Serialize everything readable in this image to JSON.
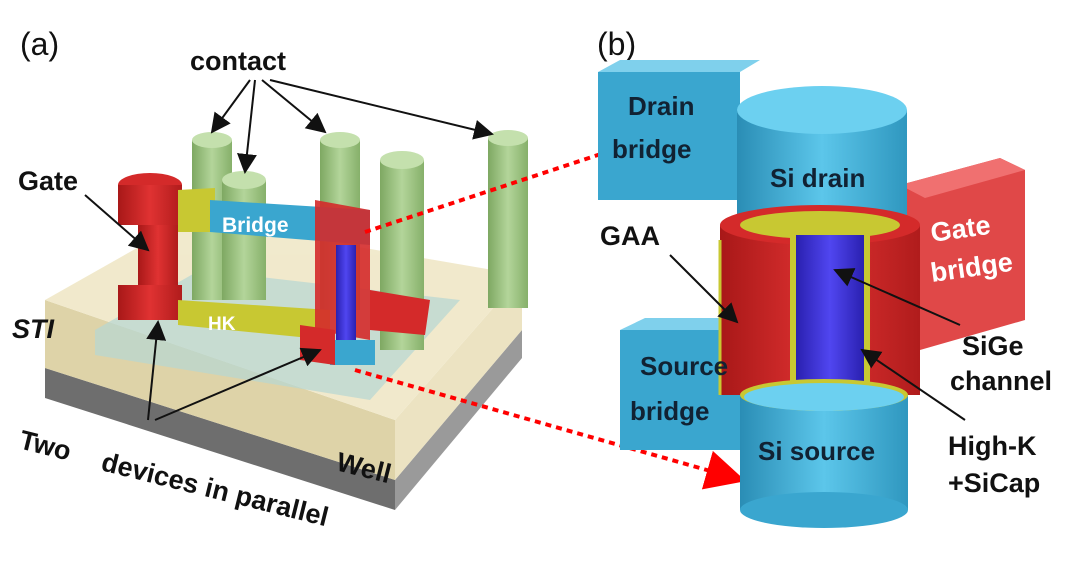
{
  "panels": {
    "a": {
      "tag": "(a)",
      "labels": {
        "contact": "contact",
        "gate": "Gate",
        "bridge": "Bridge",
        "sti": "STI",
        "hk": "HK",
        "two_devices_1": "Two",
        "two_devices_2": "devices in parallel",
        "well": "Well"
      }
    },
    "b": {
      "tag": "(b)",
      "labels": {
        "drain_bridge_1": "Drain",
        "drain_bridge_2": "bridge",
        "si_drain": "Si drain",
        "gate_bridge_1": "Gate",
        "gate_bridge_2": "bridge",
        "gaa": "GAA",
        "sige_1": "SiGe",
        "sige_2": "channel",
        "source_bridge_1": "Source",
        "source_bridge_2": "bridge",
        "si_source": "Si source",
        "highk_1": "High-K",
        "highk_2": "+SiCap"
      }
    }
  },
  "colors": {
    "silicon": "#4fb8dc",
    "gate": "#d42a2a",
    "high_k": "#c8c832",
    "contact": "#9cc47f",
    "channel": "#3a32d8",
    "sti": "#e8dcb0",
    "well": "#7a7a7a",
    "mapping_arrow": "#ff0000"
  }
}
